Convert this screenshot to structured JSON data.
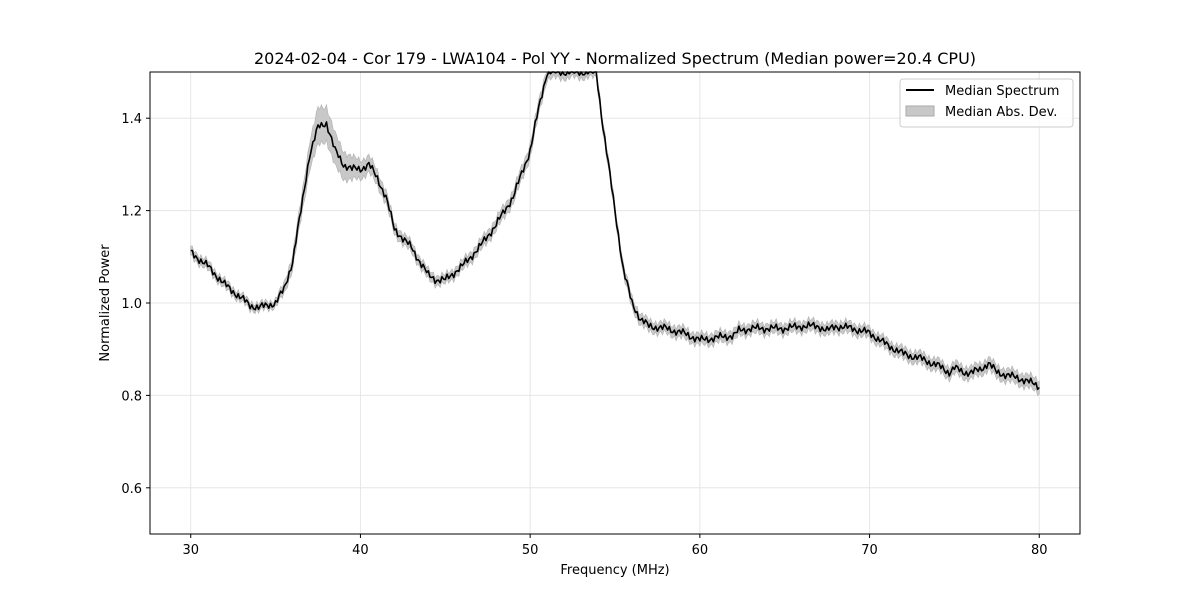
{
  "chart_data": {
    "type": "line",
    "title": "2024-02-04 - Cor 179 - LWA104 - Pol YY - Normalized Spectrum (Median power=20.4 CPU)",
    "xlabel": "Frequency (MHz)",
    "ylabel": "Normalized Power",
    "xlim": [
      27.6,
      82.4
    ],
    "ylim": [
      0.5,
      1.5
    ],
    "xticks": [
      30,
      40,
      50,
      60,
      70,
      80
    ],
    "yticks": [
      0.6,
      0.8,
      1.0,
      1.2,
      1.4
    ],
    "xtick_labels": [
      "30",
      "40",
      "50",
      "60",
      "70",
      "80"
    ],
    "ytick_labels": [
      "0.6",
      "0.8",
      "1.0",
      "1.2",
      "1.4"
    ],
    "grid": true,
    "legend_position": "top-right",
    "series": [
      {
        "name": "Median Spectrum",
        "kind": "line",
        "color": "#000000",
        "points": [
          [
            30,
            1.11
          ],
          [
            31,
            1.08
          ],
          [
            32,
            1.04
          ],
          [
            33,
            1.01
          ],
          [
            33.5,
            0.995
          ],
          [
            34,
            0.99
          ],
          [
            35,
            1.0
          ],
          [
            35.5,
            1.03
          ],
          [
            36,
            1.09
          ],
          [
            36.5,
            1.2
          ],
          [
            37,
            1.32
          ],
          [
            37.5,
            1.38
          ],
          [
            38,
            1.39
          ],
          [
            38.5,
            1.33
          ],
          [
            39,
            1.3
          ],
          [
            39.5,
            1.29
          ],
          [
            40,
            1.29
          ],
          [
            40.5,
            1.3
          ],
          [
            41,
            1.27
          ],
          [
            41.5,
            1.23
          ],
          [
            42,
            1.16
          ],
          [
            43,
            1.12
          ],
          [
            44,
            1.06
          ],
          [
            44.5,
            1.05
          ],
          [
            45,
            1.05
          ],
          [
            46,
            1.08
          ],
          [
            47,
            1.12
          ],
          [
            48,
            1.17
          ],
          [
            49,
            1.23
          ],
          [
            50,
            1.33
          ],
          [
            50.5,
            1.42
          ],
          [
            51,
            1.5
          ],
          [
            53.9,
            1.5
          ],
          [
            54.3,
            1.38
          ],
          [
            55,
            1.2
          ],
          [
            55.5,
            1.07
          ],
          [
            56,
            1.0
          ],
          [
            56.5,
            0.965
          ],
          [
            57,
            0.95
          ],
          [
            58,
            0.945
          ],
          [
            59,
            0.935
          ],
          [
            60,
            0.92
          ],
          [
            61,
            0.925
          ],
          [
            62,
            0.93
          ],
          [
            62.3,
            0.94
          ],
          [
            63,
            0.945
          ],
          [
            64,
            0.945
          ],
          [
            65,
            0.945
          ],
          [
            66,
            0.95
          ],
          [
            67,
            0.95
          ],
          [
            67.5,
            0.94
          ],
          [
            68,
            0.95
          ],
          [
            69,
            0.945
          ],
          [
            70,
            0.935
          ],
          [
            71,
            0.91
          ],
          [
            72,
            0.89
          ],
          [
            73,
            0.88
          ],
          [
            74,
            0.865
          ],
          [
            74.7,
            0.85
          ],
          [
            75,
            0.86
          ],
          [
            75.5,
            0.85
          ],
          [
            76,
            0.85
          ],
          [
            76.5,
            0.855
          ],
          [
            77,
            0.87
          ],
          [
            77.5,
            0.85
          ],
          [
            78,
            0.845
          ],
          [
            79,
            0.835
          ],
          [
            80,
            0.82
          ]
        ]
      },
      {
        "name": "Median Abs. Dev.",
        "kind": "band",
        "color": "#c8c8c8",
        "halfwidth": [
          [
            30,
            0.01
          ],
          [
            35,
            0.008
          ],
          [
            36.5,
            0.02
          ],
          [
            37.5,
            0.04
          ],
          [
            38.5,
            0.035
          ],
          [
            40,
            0.02
          ],
          [
            42,
            0.012
          ],
          [
            45,
            0.01
          ],
          [
            50,
            0.015
          ],
          [
            54,
            0.012
          ],
          [
            56,
            0.012
          ],
          [
            60,
            0.012
          ],
          [
            70,
            0.012
          ],
          [
            80,
            0.014
          ]
        ]
      }
    ]
  }
}
